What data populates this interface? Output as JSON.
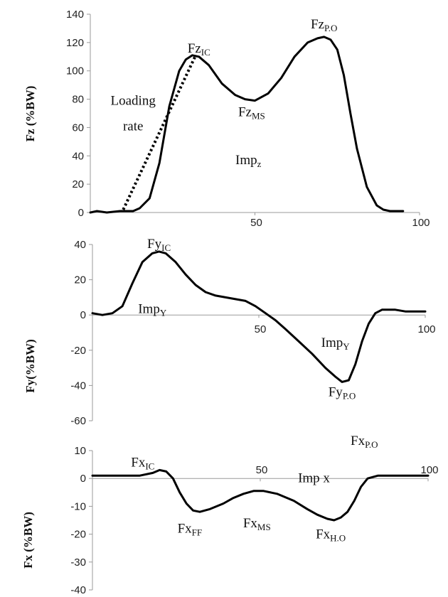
{
  "chart_data": [
    {
      "type": "line",
      "ylabel": "Fz (%BW)",
      "ylim": [
        0,
        140
      ],
      "xlim": [
        0,
        100
      ],
      "yticks": [
        "0",
        "20",
        "40",
        "60",
        "80",
        "100",
        "120",
        "140"
      ],
      "xticks": [
        "50",
        "100"
      ],
      "series": [
        {
          "x": [
            0,
            2,
            5,
            9,
            13,
            15,
            18,
            21,
            24,
            27,
            29,
            31,
            33,
            36,
            40,
            44,
            47,
            50,
            54,
            58,
            62,
            66,
            69,
            71,
            73,
            75,
            77,
            79,
            81,
            84,
            87,
            89,
            91,
            92,
            93,
            95
          ],
          "y": [
            0,
            1,
            0,
            1,
            1,
            3,
            10,
            35,
            75,
            100,
            108,
            111,
            110,
            104,
            91,
            83,
            80,
            79,
            84,
            95,
            110,
            120,
            123,
            124,
            122,
            115,
            97,
            70,
            45,
            18,
            5,
            2,
            1,
            1,
            1,
            1
          ]
        },
        {
          "x": [
            10,
            32
          ],
          "y": [
            2,
            111
          ]
        }
      ],
      "annotations": [
        {
          "text": "Fz",
          "sub": "IC",
          "x": 33,
          "y": 113,
          "anchor": "middle"
        },
        {
          "text": "Fz",
          "sub": "P.O",
          "x": 71,
          "y": 130,
          "anchor": "middle"
        },
        {
          "text": "Fz",
          "sub": "MS",
          "x": 49,
          "y": 68,
          "anchor": "middle"
        },
        {
          "text": "Loading",
          "sub": "",
          "x": 13,
          "y": 76,
          "anchor": "middle"
        },
        {
          "text": "rate",
          "sub": "",
          "x": 13,
          "y": 58,
          "anchor": "middle"
        },
        {
          "text": "Imp",
          "sub": "z",
          "x": 48,
          "y": 34,
          "anchor": "middle"
        }
      ]
    },
    {
      "type": "line",
      "ylabel": "Fy(%BW)",
      "ylim": [
        -60,
        40
      ],
      "xlim": [
        0,
        100
      ],
      "yticks": [
        "-60",
        "-40",
        "-20",
        "0",
        "20",
        "40"
      ],
      "xticks": [
        "50",
        "100"
      ],
      "series": [
        {
          "x": [
            0,
            3,
            6,
            9,
            12,
            15,
            18,
            20,
            22,
            25,
            28,
            31,
            34,
            37,
            40,
            43,
            46,
            49,
            52,
            55,
            58,
            62,
            66,
            70,
            73,
            75,
            77,
            79,
            81,
            83,
            85,
            87,
            89,
            91,
            94,
            97,
            100
          ],
          "y": [
            1,
            0,
            1,
            5,
            18,
            30,
            35,
            36,
            35,
            30,
            23,
            17,
            13,
            11,
            10,
            9,
            8,
            5,
            1,
            -3,
            -8,
            -15,
            -22,
            -30,
            -35,
            -38,
            -37,
            -28,
            -15,
            -5,
            1,
            3,
            3,
            3,
            2,
            2,
            2
          ]
        }
      ],
      "annotations": [
        {
          "text": "Fy",
          "sub": "IC",
          "x": 20,
          "y": 38,
          "anchor": "middle"
        },
        {
          "text": "Imp",
          "sub": "Y",
          "x": 18,
          "y": 1,
          "anchor": "middle"
        },
        {
          "text": "Imp",
          "sub": "Y",
          "x": 73,
          "y": -18,
          "anchor": "middle"
        },
        {
          "text": "Fy",
          "sub": "P.O",
          "x": 75,
          "y": -46,
          "anchor": "middle"
        }
      ]
    },
    {
      "type": "line",
      "ylabel": "Fx (%BW)",
      "ylim": [
        -40,
        10
      ],
      "xlim": [
        0,
        100
      ],
      "yticks": [
        "-40",
        "-30",
        "-20",
        "-10",
        "0",
        "10"
      ],
      "xticks": [
        "50",
        "100"
      ],
      "series": [
        {
          "x": [
            0,
            5,
            10,
            14,
            18,
            20,
            22,
            24,
            26,
            28,
            30,
            32,
            35,
            39,
            42,
            45,
            48,
            51,
            55,
            60,
            64,
            67,
            70,
            72,
            74,
            76,
            78,
            80,
            82,
            85,
            88,
            92,
            96,
            100
          ],
          "y": [
            1,
            1,
            1,
            1,
            2,
            3,
            2.5,
            0,
            -5,
            -9,
            -11.5,
            -12,
            -11,
            -9,
            -7,
            -5.5,
            -4.5,
            -4.5,
            -5.5,
            -8,
            -11,
            -13,
            -14.5,
            -15,
            -14,
            -12,
            -8,
            -3,
            0,
            1,
            1,
            1,
            1,
            1
          ]
        }
      ],
      "annotations": [
        {
          "text": "Fx",
          "sub": "IC",
          "x": 15,
          "y": 4.2,
          "anchor": "middle"
        },
        {
          "text": "Fx",
          "sub": "P.O",
          "x": 81,
          "y": 12,
          "anchor": "middle"
        },
        {
          "text": "Imp x",
          "sub": "",
          "x": 66,
          "y": -1.3,
          "anchor": "middle"
        },
        {
          "text": "Fx",
          "sub": "FF",
          "x": 29,
          "y": -19.5,
          "anchor": "middle"
        },
        {
          "text": "Fx",
          "sub": "MS",
          "x": 49,
          "y": -17.5,
          "anchor": "middle"
        },
        {
          "text": "Fx",
          "sub": "H.O",
          "x": 71,
          "y": -21.5,
          "anchor": "middle"
        }
      ]
    }
  ]
}
